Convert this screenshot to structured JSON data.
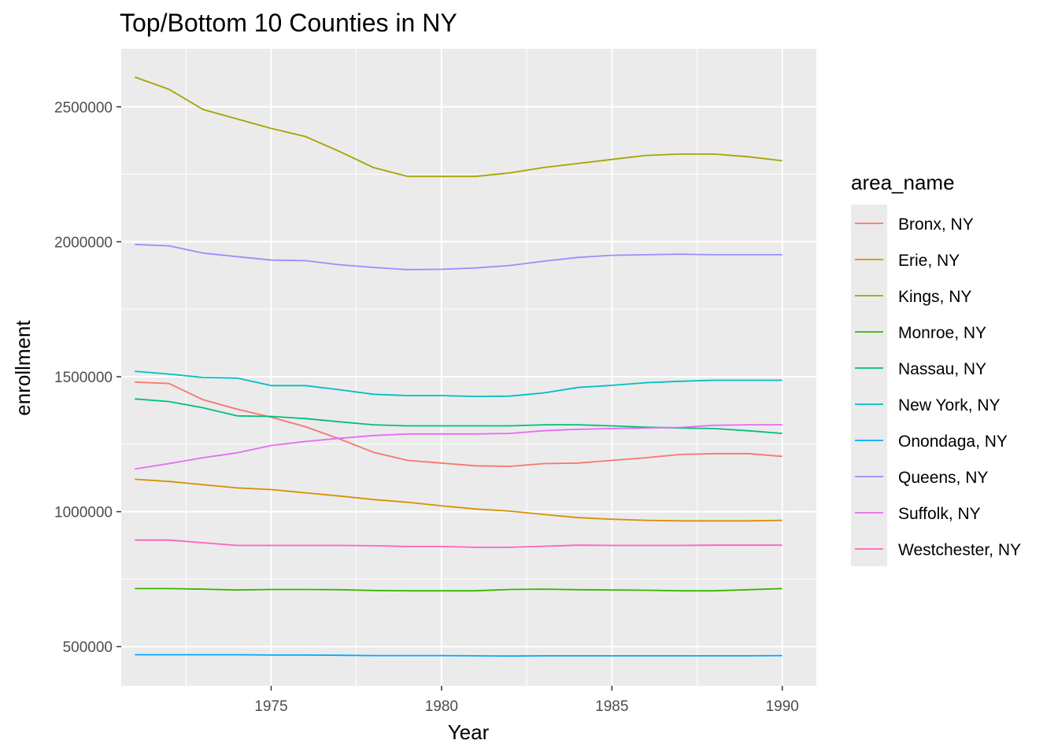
{
  "chart_data": {
    "type": "line",
    "title": "Top/Bottom 10 Counties in NY",
    "xlabel": "Year",
    "ylabel": "enrollment",
    "xlim": [
      1970.6,
      1991.0
    ],
    "ylim": [
      355000,
      2715000
    ],
    "x_ticks": [
      1975,
      1980,
      1985,
      1990
    ],
    "x_tick_labels": [
      "1975",
      "1980",
      "1985",
      "1990"
    ],
    "y_ticks": [
      500000,
      1000000,
      1500000,
      2000000,
      2500000
    ],
    "y_tick_labels": [
      "500000",
      "1000000",
      "1500000",
      "2000000",
      "2500000"
    ],
    "grid": true,
    "legend_title": "area_name",
    "legend_position": "right",
    "x": [
      1971,
      1972,
      1973,
      1974,
      1975,
      1976,
      1977,
      1978,
      1979,
      1980,
      1981,
      1982,
      1983,
      1984,
      1985,
      1986,
      1987,
      1988,
      1989,
      1990
    ],
    "series": [
      {
        "name": "Bronx, NY",
        "color": "#F8766D",
        "values": [
          1480000,
          1475000,
          1415000,
          1380000,
          1350000,
          1315000,
          1270000,
          1220000,
          1190000,
          1180000,
          1170000,
          1168000,
          1178000,
          1180000,
          1190000,
          1200000,
          1212000,
          1215000,
          1215000,
          1205000
        ]
      },
      {
        "name": "Erie, NY",
        "color": "#D89000",
        "values": [
          1120000,
          1112000,
          1100000,
          1088000,
          1082000,
          1070000,
          1058000,
          1045000,
          1035000,
          1022000,
          1010000,
          1002000,
          990000,
          978000,
          972000,
          968000,
          966000,
          966000,
          966000,
          968000
        ]
      },
      {
        "name": "Kings, NY",
        "color": "#A3A500",
        "values": [
          2610000,
          2565000,
          2490000,
          2455000,
          2420000,
          2390000,
          2335000,
          2275000,
          2242000,
          2242000,
          2242000,
          2255000,
          2275000,
          2290000,
          2305000,
          2320000,
          2325000,
          2325000,
          2315000,
          2300000
        ]
      },
      {
        "name": "Monroe, NY",
        "color": "#39B600",
        "values": [
          715000,
          715000,
          713000,
          710000,
          712000,
          712000,
          711000,
          708000,
          707000,
          707000,
          707000,
          712000,
          713000,
          711000,
          710000,
          709000,
          707000,
          707000,
          711000,
          715000
        ]
      },
      {
        "name": "Nassau, NY",
        "color": "#00BF7D",
        "values": [
          1418000,
          1408000,
          1385000,
          1355000,
          1353000,
          1345000,
          1333000,
          1322000,
          1318000,
          1318000,
          1318000,
          1318000,
          1322000,
          1322000,
          1318000,
          1313000,
          1310000,
          1308000,
          1300000,
          1290000
        ]
      },
      {
        "name": "New York, NY",
        "color": "#00BFC4",
        "values": [
          1520000,
          1510000,
          1497000,
          1495000,
          1467000,
          1467000,
          1452000,
          1435000,
          1430000,
          1430000,
          1427000,
          1428000,
          1440000,
          1460000,
          1468000,
          1478000,
          1483000,
          1487000,
          1487000,
          1487000
        ]
      },
      {
        "name": "Onondaga, NY",
        "color": "#00A9FF",
        "values": [
          470000,
          470000,
          470000,
          470000,
          469000,
          469000,
          468000,
          467000,
          467000,
          467000,
          466000,
          465000,
          466000,
          466000,
          466000,
          466000,
          466000,
          466000,
          466000,
          467000
        ]
      },
      {
        "name": "Queens, NY",
        "color": "#9590FF",
        "values": [
          1990000,
          1985000,
          1958000,
          1945000,
          1932000,
          1930000,
          1915000,
          1905000,
          1897000,
          1898000,
          1903000,
          1912000,
          1928000,
          1942000,
          1950000,
          1952000,
          1954000,
          1952000,
          1952000,
          1952000
        ]
      },
      {
        "name": "Suffolk, NY",
        "color": "#E76BF3",
        "values": [
          1158000,
          1178000,
          1200000,
          1218000,
          1245000,
          1260000,
          1272000,
          1282000,
          1288000,
          1288000,
          1288000,
          1290000,
          1300000,
          1305000,
          1308000,
          1310000,
          1312000,
          1320000,
          1322000,
          1322000
        ]
      },
      {
        "name": "Westchester, NY",
        "color": "#FF62BC",
        "values": [
          895000,
          895000,
          885000,
          875000,
          875000,
          875000,
          875000,
          874000,
          871000,
          871000,
          868000,
          868000,
          872000,
          876000,
          875000,
          875000,
          875000,
          876000,
          876000,
          876000
        ]
      }
    ]
  }
}
